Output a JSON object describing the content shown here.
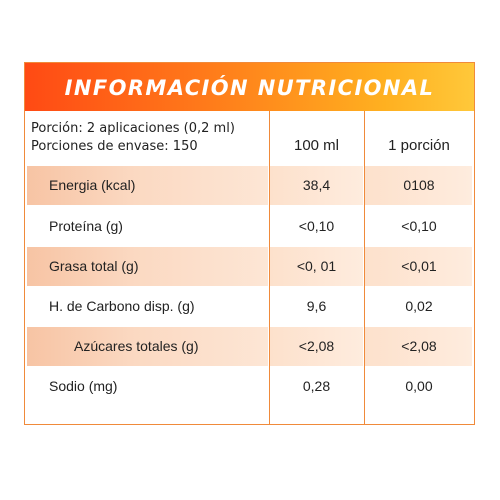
{
  "title": "INFORMACIÓN NUTRICIONAL",
  "serving": {
    "line1": "Porción: 2 aplicaciones (0,2 ml)",
    "line2": "Porciones de envase: 150"
  },
  "columns": {
    "per_100": "100 ml",
    "per_portion": "1 porción"
  },
  "rows": [
    {
      "label": "Energia (kcal)",
      "per_100": "38,4",
      "per_portion": "0108"
    },
    {
      "label": "Proteína (g)",
      "per_100": "<0,10",
      "per_portion": "<0,10"
    },
    {
      "label": "Grasa total (g)",
      "per_100": "<0, 01",
      "per_portion": "<0,01"
    },
    {
      "label": "H. de Carbono disp. (g)",
      "per_100": "9,6",
      "per_portion": "0,02"
    },
    {
      "label": "Azúcares totales (g)",
      "per_100": "<2,08",
      "per_portion": "<2,08"
    },
    {
      "label": "Sodio (mg)",
      "per_100": "0,28",
      "per_portion": "0,00"
    }
  ],
  "colors": {
    "accent_start": "#ff4a14",
    "accent_end": "#ffc83a",
    "border": "#f08a3a",
    "row_shade": "#fbd9c2"
  }
}
